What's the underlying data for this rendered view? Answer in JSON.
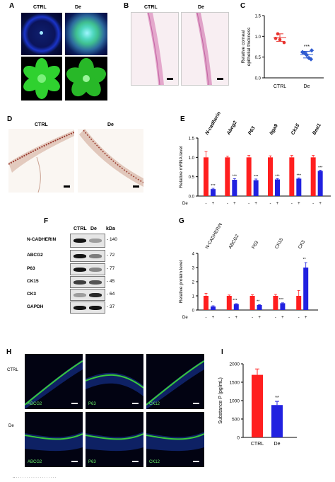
{
  "panels": {
    "A": {
      "label": "A",
      "cols": [
        "CTRL",
        "De"
      ]
    },
    "B": {
      "label": "B",
      "cols": [
        "CTRL",
        "De"
      ]
    },
    "C": {
      "label": "C"
    },
    "D": {
      "label": "D",
      "cols": [
        "CTRL",
        "De"
      ]
    },
    "E": {
      "label": "E"
    },
    "F": {
      "label": "F",
      "cols": [
        "CTRL",
        "De",
        "kDa"
      ],
      "rows": [
        "N-CADHERIN",
        "ABCG2",
        "P63",
        "CK15",
        "CK3",
        "GAPDH"
      ],
      "kda": [
        "140",
        "72",
        "77",
        "45",
        "64",
        "37"
      ]
    },
    "G": {
      "label": "G"
    },
    "H": {
      "label": "H",
      "rows": [
        "CTRL",
        "De"
      ],
      "stains_ctrl": [
        "ABCG2",
        "P63",
        "CK12"
      ],
      "stains_de": [
        "ABCG2",
        "P63",
        "CK12"
      ]
    },
    "I": {
      "label": "I"
    }
  },
  "chart_data": [
    {
      "id": "C",
      "type": "scatter",
      "ylabel": "Relative corneal\nepithelial thickness",
      "categories": [
        "CTRL",
        "De"
      ],
      "ylim": [
        0,
        1.5
      ],
      "yticks": [
        "0.0",
        "0.5",
        "1.0",
        "1.5"
      ],
      "series": [
        {
          "values": [
            0.95,
            0.92,
            0.85,
            1.06
          ],
          "mean": 0.97,
          "err": 0.09,
          "color": "#e8332e"
        },
        {
          "values": [
            0.62,
            0.55,
            0.45,
            0.6,
            0.48,
            0.66
          ],
          "mean": 0.56,
          "err": 0.08,
          "color": "#2f5bd0"
        }
      ],
      "annotations": [
        "***"
      ]
    },
    {
      "id": "E",
      "type": "bar",
      "ylabel": "Relative mRNA level",
      "ylim": [
        0,
        1.5
      ],
      "yticks": [
        "0.0",
        "0.5",
        "1.0",
        "1.5"
      ],
      "categories": [
        "N-cadherin",
        "Abcg2",
        "P63",
        "Itga9",
        "Ck15",
        "Bmi1"
      ],
      "series": [
        {
          "values": [
            1.0,
            1.0,
            1.0,
            1.0,
            1.0,
            1.0
          ],
          "err": [
            0.15,
            0.03,
            0.05,
            0.04,
            0.05,
            0.05
          ],
          "color": "#ff1f1f"
        },
        {
          "values": [
            0.18,
            0.42,
            0.41,
            0.43,
            0.45,
            0.65
          ],
          "err": [
            0.02,
            0.03,
            0.03,
            0.02,
            0.02,
            0.02
          ],
          "color": "#2121e0"
        }
      ],
      "annotations": [
        "***",
        "***",
        "***",
        "***",
        "***",
        "***"
      ],
      "xrow": {
        "label": "De",
        "signs": [
          "-",
          "+"
        ]
      }
    },
    {
      "id": "G",
      "type": "bar",
      "ylabel": "Relative protein level",
      "ylim": [
        0,
        4
      ],
      "yticks": [
        "0",
        "1",
        "2",
        "3",
        "4"
      ],
      "categories": [
        "N-CADHERIN",
        "ABCG2",
        "P63",
        "CK15",
        "CK3"
      ],
      "series": [
        {
          "values": [
            1.0,
            1.0,
            1.0,
            1.0,
            1.0
          ],
          "err": [
            0.18,
            0.06,
            0.08,
            0.1,
            0.38
          ],
          "color": "#ff1f1f"
        },
        {
          "values": [
            0.25,
            0.42,
            0.35,
            0.48,
            3.0
          ],
          "err": [
            0.05,
            0.03,
            0.03,
            0.03,
            0.35
          ],
          "color": "#2121e0"
        }
      ],
      "annotations": [
        "*",
        "***",
        "**",
        "***",
        "**"
      ],
      "xrow": {
        "label": "De",
        "signs": [
          "-",
          "+"
        ]
      }
    },
    {
      "id": "I",
      "type": "bar",
      "ylabel": "Substance P (pg/mL)",
      "ylim": [
        0,
        2000
      ],
      "yticks": [
        "0",
        "500",
        "1000",
        "1500",
        "2000"
      ],
      "categories": [
        "CTRL",
        "De"
      ],
      "series": [
        {
          "values": [
            1700,
            880
          ],
          "err": [
            160,
            100
          ],
          "colors": [
            "#ff1f1f",
            "#2121e0"
          ]
        }
      ],
      "annotations": [
        "**"
      ]
    }
  ]
}
